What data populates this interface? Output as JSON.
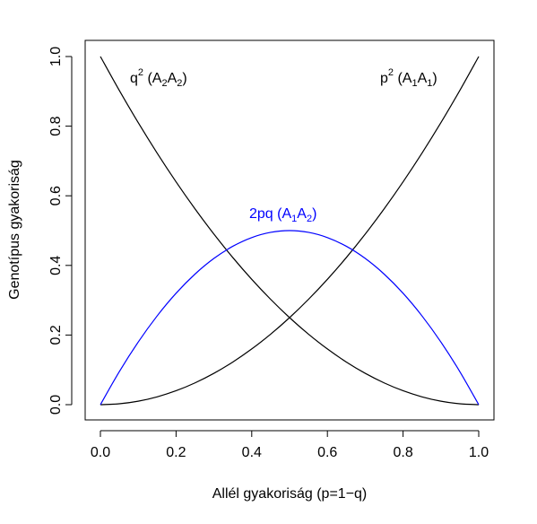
{
  "chart_data": {
    "type": "line",
    "xlabel": "Allél gyakoriság (p=1−q)",
    "ylabel": "Genotípus gyakoriság",
    "xlim": [
      0,
      1
    ],
    "ylim": [
      0,
      1
    ],
    "x_ticks": [
      "0.0",
      "0.2",
      "0.4",
      "0.6",
      "0.8",
      "1.0"
    ],
    "y_ticks": [
      "0.0",
      "0.2",
      "0.4",
      "0.6",
      "0.8",
      "1.0"
    ],
    "grid": false,
    "legend": "none",
    "x": [
      0.0,
      0.05,
      0.1,
      0.15,
      0.2,
      0.25,
      0.3,
      0.35,
      0.4,
      0.45,
      0.5,
      0.55,
      0.6,
      0.65,
      0.7,
      0.75,
      0.8,
      0.85,
      0.9,
      0.95,
      1.0
    ],
    "series": [
      {
        "name": "q2",
        "color": "#000000",
        "values": [
          1.0,
          0.9025,
          0.81,
          0.7225,
          0.64,
          0.5625,
          0.49,
          0.4225,
          0.36,
          0.3025,
          0.25,
          0.2025,
          0.16,
          0.1225,
          0.09,
          0.0625,
          0.04,
          0.0225,
          0.01,
          0.0025,
          0.0
        ]
      },
      {
        "name": "p2",
        "color": "#000000",
        "values": [
          0.0,
          0.0025,
          0.01,
          0.0225,
          0.04,
          0.0625,
          0.09,
          0.1225,
          0.16,
          0.2025,
          0.25,
          0.3025,
          0.36,
          0.4225,
          0.49,
          0.5625,
          0.64,
          0.7225,
          0.81,
          0.9025,
          1.0
        ]
      },
      {
        "name": "2pq",
        "color": "#0000ff",
        "values": [
          0.0,
          0.095,
          0.18,
          0.255,
          0.32,
          0.375,
          0.42,
          0.455,
          0.48,
          0.495,
          0.5,
          0.495,
          0.48,
          0.455,
          0.42,
          0.375,
          0.32,
          0.255,
          0.18,
          0.095,
          0.0
        ]
      }
    ],
    "annotations": {
      "q2": {
        "base": "q",
        "sup": "2",
        "open": " (A",
        "sub1": "2",
        "mid": "A",
        "sub2": "2",
        "close": ")",
        "color": "#000000"
      },
      "p2": {
        "base": "p",
        "sup": "2",
        "open": " (A",
        "sub1": "1",
        "mid": "A",
        "sub2": "1",
        "close": ")",
        "color": "#000000"
      },
      "twopq": {
        "base": "2pq",
        "open": " (A",
        "sub1": "1",
        "mid": "A",
        "sub2": "2",
        "close": ")",
        "color": "#0000ff"
      }
    }
  }
}
